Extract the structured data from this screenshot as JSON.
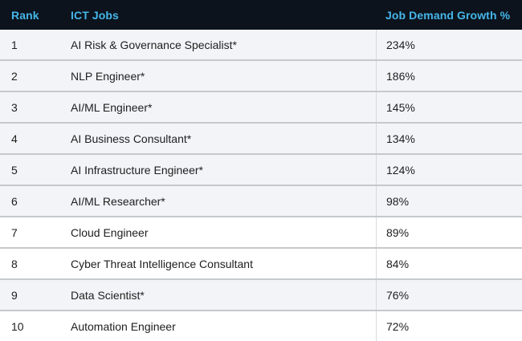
{
  "table": {
    "columns": [
      {
        "key": "rank",
        "label": "Rank"
      },
      {
        "key": "job",
        "label": "ICT Jobs"
      },
      {
        "key": "growth",
        "label": "Job Demand Growth %"
      }
    ],
    "rows": [
      {
        "rank": "1",
        "job": "AI Risk & Governance Specialist*",
        "growth": "234%",
        "highlighted": true
      },
      {
        "rank": "2",
        "job": "NLP Engineer*",
        "growth": "186%",
        "highlighted": true
      },
      {
        "rank": "3",
        "job": "AI/ML Engineer*",
        "growth": "145%",
        "highlighted": true
      },
      {
        "rank": "4",
        "job": "AI Business Consultant*",
        "growth": "134%",
        "highlighted": true
      },
      {
        "rank": "5",
        "job": "AI Infrastructure Engineer*",
        "growth": "124%",
        "highlighted": true
      },
      {
        "rank": "6",
        "job": "AI/ML Researcher*",
        "growth": "98%",
        "highlighted": true
      },
      {
        "rank": "7",
        "job": "Cloud Engineer",
        "growth": "89%",
        "highlighted": false
      },
      {
        "rank": "8",
        "job": "Cyber Threat Intelligence Consultant",
        "growth": "84%",
        "highlighted": false
      },
      {
        "rank": "9",
        "job": "Data Scientist*",
        "growth": "76%",
        "highlighted": true
      },
      {
        "rank": "10",
        "job": "Automation Engineer",
        "growth": "72%",
        "highlighted": false
      }
    ]
  },
  "colors": {
    "header_bg": "#0c131d",
    "header_text": "#45b6e8",
    "row_highlight_bg": "#f2f4f7",
    "row_plain_bg": "#ffffff",
    "separator": "#c6c9cc",
    "row_text": "#1e1e1e"
  },
  "chart_data": {
    "type": "table",
    "title": "",
    "columns": [
      "Rank",
      "ICT Jobs",
      "Job Demand Growth %"
    ],
    "categories": [
      "AI Risk & Governance Specialist*",
      "NLP Engineer*",
      "AI/ML Engineer*",
      "AI Business Consultant*",
      "AI Infrastructure Engineer*",
      "AI/ML Researcher*",
      "Cloud Engineer",
      "Cyber Threat Intelligence Consultant",
      "Data Scientist*",
      "Automation Engineer"
    ],
    "ranks": [
      1,
      2,
      3,
      4,
      5,
      6,
      7,
      8,
      9,
      10
    ],
    "values_percent": [
      234,
      186,
      145,
      134,
      124,
      98,
      89,
      84,
      76,
      72
    ],
    "notes": "Rows marked with * are shaded with a light gray-blue highlight"
  }
}
